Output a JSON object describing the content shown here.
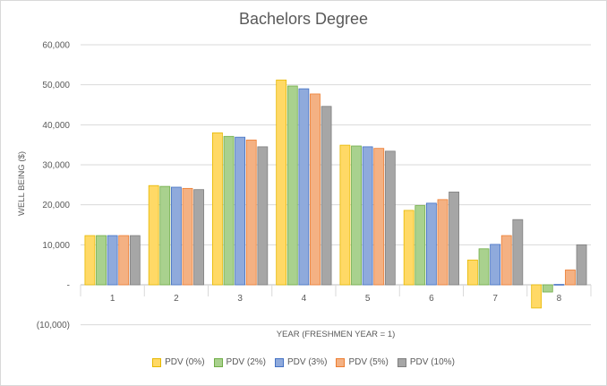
{
  "chart_data": {
    "type": "bar",
    "title": "Bachelors Degree",
    "xlabel": "YEAR (FRESHMEN YEAR = 1)",
    "ylabel": "WELL BEING ($)",
    "ylim": [
      -10000,
      60000
    ],
    "yticks": [
      60000,
      50000,
      40000,
      30000,
      20000,
      10000,
      0,
      -10000
    ],
    "ytick_labels": [
      "60,000",
      "50,000",
      "40,000",
      "30,000",
      "20,000",
      "10,000",
      "-",
      "(10,000)"
    ],
    "categories": [
      "1",
      "2",
      "3",
      "4",
      "5",
      "6",
      "7",
      "8"
    ],
    "grid": true,
    "legend_position": "bottom",
    "series": [
      {
        "name": "PDV (0%)",
        "fill": "#ffd966",
        "stroke": "#e6b800",
        "values": [
          12300,
          24800,
          38000,
          51200,
          34900,
          18600,
          6200,
          -5800
        ]
      },
      {
        "name": "PDV (2%)",
        "fill": "#a9d18e",
        "stroke": "#70ad47",
        "values": [
          12300,
          24600,
          37100,
          49700,
          34700,
          19800,
          9000,
          -1800
        ]
      },
      {
        "name": "PDV (3%)",
        "fill": "#8faadc",
        "stroke": "#4472c4",
        "values": [
          12300,
          24400,
          36900,
          49000,
          34500,
          20400,
          10100,
          100
        ]
      },
      {
        "name": "PDV (5%)",
        "fill": "#f4b183",
        "stroke": "#ed7d31",
        "values": [
          12300,
          24100,
          36200,
          47700,
          34100,
          21300,
          12300,
          3700
        ]
      },
      {
        "name": "PDV (10%)",
        "fill": "#a6a6a6",
        "stroke": "#7f7f7f",
        "values": [
          12300,
          23800,
          34500,
          44600,
          33400,
          23200,
          16300,
          10000
        ]
      }
    ]
  }
}
